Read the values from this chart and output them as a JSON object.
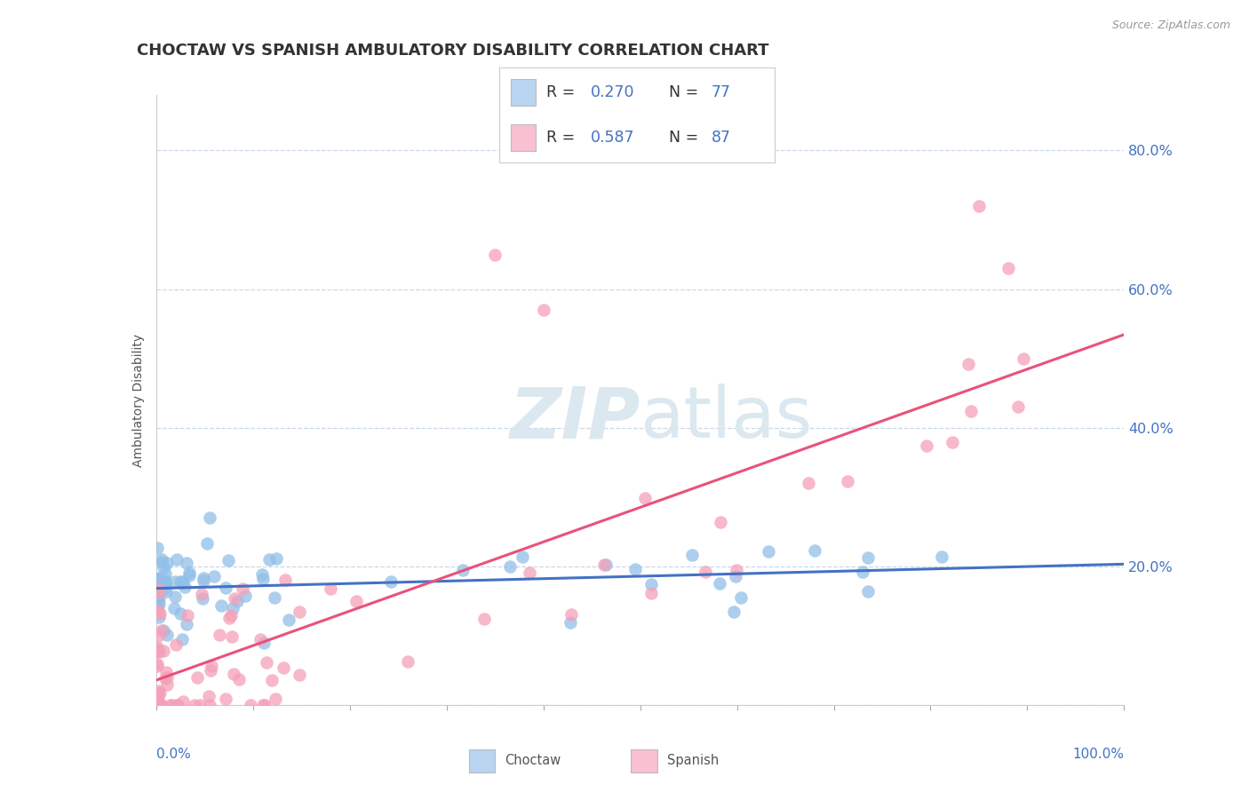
{
  "title": "CHOCTAW VS SPANISH AMBULATORY DISABILITY CORRELATION CHART",
  "source": "Source: ZipAtlas.com",
  "ylabel": "Ambulatory Disability",
  "choctaw_color": "#92bfe8",
  "spanish_color": "#f5a0b8",
  "trend_choctaw_color": "#4472c4",
  "trend_spanish_color": "#e8527a",
  "label_color": "#4472c4",
  "background_color": "#ffffff",
  "grid_color": "#c8d8e8",
  "watermark_color": "#dce8f0",
  "ytick_vals": [
    0.0,
    0.2,
    0.4,
    0.6,
    0.8
  ],
  "ytick_labels": [
    "",
    "20.0%",
    "40.0%",
    "60.0%",
    "80.0%"
  ],
  "choctaw_R": "0.270",
  "choctaw_N": "77",
  "spanish_R": "0.587",
  "spanish_N": "87",
  "choctaw_legend_color": "#b8d4f0",
  "spanish_legend_color": "#f8c0d0"
}
